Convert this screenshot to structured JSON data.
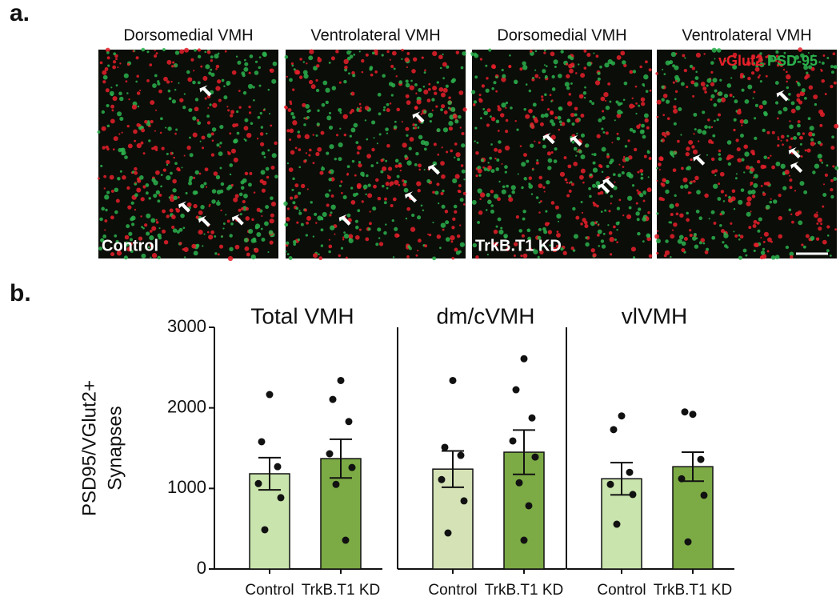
{
  "panel_a": {
    "label": "a.",
    "titles": [
      "Dorsomedial VMH",
      "Ventrolateral VMH",
      "Dorsomedial VMH",
      "Ventrolateral VMH"
    ],
    "channels": [
      {
        "name": "vGlut2",
        "color": "#e8202a"
      },
      {
        "name": "PSD-95",
        "color": "#2bb24c"
      }
    ],
    "conditions": [
      "Control",
      "TrkB.T1 KD"
    ]
  },
  "panel_b": {
    "label": "b.",
    "y_label": [
      "PSD95/VGlut2+",
      "Synapses"
    ]
  },
  "chart_data": [
    {
      "type": "bar",
      "title": "Total VMH",
      "categories": [
        "Control",
        "TrkB.T1 KD"
      ],
      "values": [
        1182,
        1370
      ],
      "errors": [
        200,
        240
      ],
      "colors": [
        "#c9e4ac",
        "#7cab45"
      ],
      "points": [
        [
          2165,
          1580,
          1270,
          1060,
          885,
          487
        ],
        [
          2340,
          2105,
          1830,
          1430,
          1260,
          1050,
          357
        ]
      ],
      "ylim": [
        0,
        3000
      ],
      "yticks": [
        0,
        1000,
        2000,
        3000
      ]
    },
    {
      "type": "bar",
      "title": "dm/cVMH",
      "categories": [
        "Control",
        "TrkB.T1 KD"
      ],
      "values": [
        1240,
        1450
      ],
      "errors": [
        225,
        275
      ],
      "colors": [
        "#d4e2b6",
        "#7cab45"
      ],
      "points": [
        [
          2340,
          1510,
          1410,
          1110,
          845,
          447
        ],
        [
          2610,
          2225,
          1875,
          1590,
          1390,
          1070,
          785,
          357
        ]
      ],
      "ylim": [
        0,
        3000
      ]
    },
    {
      "type": "bar",
      "title": "vlVMH",
      "categories": [
        "Control",
        "TrkB.T1 KD"
      ],
      "values": [
        1120,
        1270
      ],
      "errors": [
        200,
        180
      ],
      "colors": [
        "#c9e4ac",
        "#7cab45"
      ],
      "points": [
        [
          1900,
          1730,
          1200,
          1050,
          925,
          556
        ],
        [
          1920,
          1950,
          1360,
          1120,
          915,
          337
        ]
      ],
      "ylim": [
        0,
        3000
      ]
    }
  ]
}
